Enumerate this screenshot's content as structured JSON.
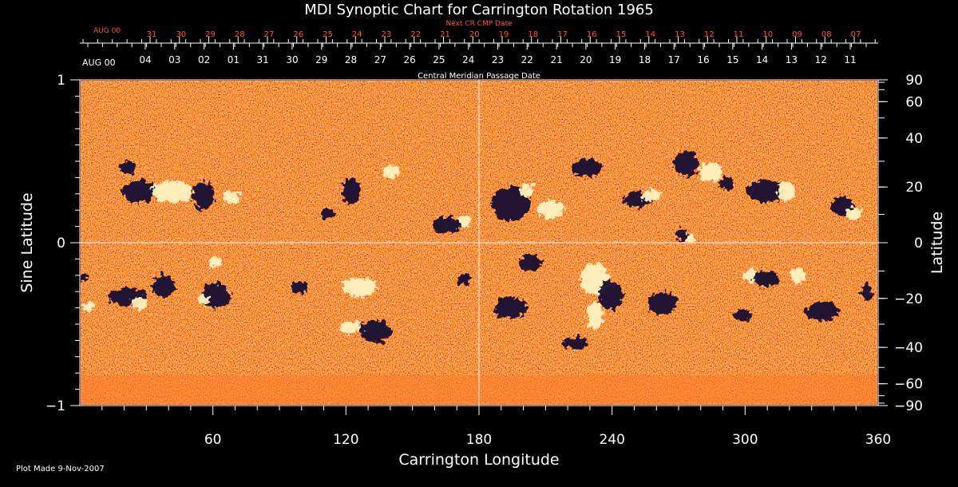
{
  "chart_data": {
    "type": "heatmap",
    "title": "MDI Synoptic Chart for Carrington Rotation 1965",
    "xlabel": "Carrington Longitude",
    "ylabel_left": "Sine Latitude",
    "ylabel_right": "Latitude",
    "xlim": [
      0,
      360
    ],
    "ylim": [
      -1,
      1
    ],
    "x_ticks": [
      60,
      120,
      180,
      240,
      300,
      360
    ],
    "y_ticks_left": [
      {
        "value": 1,
        "label": "1"
      },
      {
        "value": 0,
        "label": "0"
      },
      {
        "value": -1,
        "label": "−1"
      }
    ],
    "y_ticks_right": [
      {
        "lat": 90,
        "label": "90"
      },
      {
        "lat": 60,
        "label": "60"
      },
      {
        "lat": 40,
        "label": "40"
      },
      {
        "lat": 20,
        "label": "20"
      },
      {
        "lat": 0,
        "label": "0"
      },
      {
        "lat": -20,
        "label": "−20"
      },
      {
        "lat": -40,
        "label": "−40"
      },
      {
        "lat": -60,
        "label": "−60"
      },
      {
        "lat": -90,
        "label": "−90"
      }
    ],
    "next_cr_axis_label": "Next CR CMP Date",
    "next_cr_start_label": "AUG 00",
    "next_cr_dates": [
      "31",
      "30",
      "29",
      "28",
      "27",
      "26",
      "25",
      "24",
      "23",
      "22",
      "21",
      "20",
      "19",
      "18",
      "17",
      "16",
      "15",
      "14",
      "13",
      "12",
      "11",
      "10",
      "09",
      "08",
      "07"
    ],
    "cmp_axis_label": "Central Meridian Passage Date",
    "cmp_start_label": "AUG 00",
    "cmp_dates": [
      "04",
      "03",
      "02",
      "01",
      "31",
      "30",
      "29",
      "28",
      "27",
      "26",
      "25",
      "24",
      "23",
      "22",
      "21",
      "20",
      "19",
      "18",
      "17",
      "16",
      "15",
      "14",
      "13",
      "12",
      "11"
    ],
    "colors": {
      "background_field": "#ff4a0a",
      "positive_polarity": "#fff2c0",
      "negative_polarity": "#161233",
      "next_cr_text": "#ff5a1e"
    }
  },
  "footer": {
    "plot_made": "Plot Made  9-Nov-2007"
  }
}
